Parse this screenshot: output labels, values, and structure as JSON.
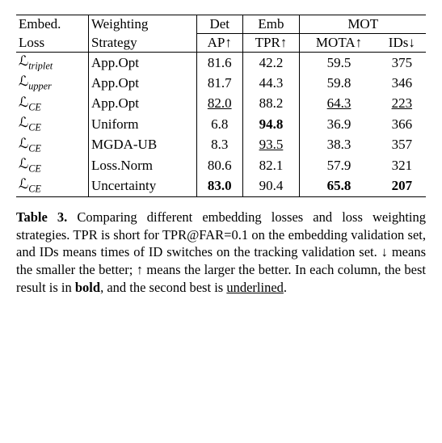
{
  "table": {
    "header": {
      "r1": {
        "embed": "Embed.",
        "weight": "Weighting",
        "det": "Det",
        "emb": "Emb",
        "mot": "MOT"
      },
      "r2": {
        "loss": "Loss",
        "strategy": "Strategy",
        "ap": "AP↑",
        "tpr": "TPR↑",
        "mota": "MOTA↑",
        "ids": "IDs↓"
      }
    },
    "rows": [
      {
        "loss_base": "ℒ",
        "loss_sub": "triplet",
        "strategy": "App.Opt",
        "ap": "81.6",
        "ap_style": "",
        "tpr": "42.2",
        "tpr_style": "",
        "mota": "59.5",
        "mota_style": "",
        "ids": "375",
        "ids_style": ""
      },
      {
        "loss_base": "ℒ",
        "loss_sub": "upper",
        "strategy": "App.Opt",
        "ap": "81.7",
        "ap_style": "",
        "tpr": "44.3",
        "tpr_style": "",
        "mota": "59.8",
        "mota_style": "",
        "ids": "346",
        "ids_style": ""
      },
      {
        "loss_base": "ℒ",
        "loss_sub": "CE",
        "strategy": "App.Opt",
        "ap": "82.0",
        "ap_style": "uline",
        "tpr": "88.2",
        "tpr_style": "",
        "mota": "64.3",
        "mota_style": "uline",
        "ids": "223",
        "ids_style": "uline"
      },
      {
        "loss_base": "ℒ",
        "loss_sub": "CE",
        "strategy": "Uniform",
        "ap": "6.8",
        "ap_style": "",
        "tpr": "94.8",
        "tpr_style": "bold",
        "mota": "36.9",
        "mota_style": "",
        "ids": "366",
        "ids_style": ""
      },
      {
        "loss_base": "ℒ",
        "loss_sub": "CE",
        "strategy": "MGDA-UB",
        "ap": "8.3",
        "ap_style": "",
        "tpr": "93.5",
        "tpr_style": "uline",
        "mota": "38.3",
        "mota_style": "",
        "ids": "357",
        "ids_style": ""
      },
      {
        "loss_base": "ℒ",
        "loss_sub": "CE",
        "strategy": "Loss.Norm",
        "ap": "80.6",
        "ap_style": "",
        "tpr": "82.1",
        "tpr_style": "",
        "mota": "57.9",
        "mota_style": "",
        "ids": "321",
        "ids_style": ""
      },
      {
        "loss_base": "ℒ",
        "loss_sub": "CE",
        "strategy": "Uncertainty",
        "ap": "83.0",
        "ap_style": "bold",
        "tpr": "90.4",
        "tpr_style": "",
        "mota": "65.8",
        "mota_style": "bold",
        "ids": "207",
        "ids_style": "bold"
      }
    ]
  },
  "caption": {
    "lead": "Table 3.",
    "body_pre": " Comparing different embedding losses and loss weighting strategies. TPR is short for TPR@FAR=0.1 on the embedding validation set, and IDs means times of ID switches on the tracking validation set. ↓ means the smaller the better; ↑ means the larger the better. In each column, the best result is in ",
    "bold_word": "bold",
    "body_mid": ", and the second best is ",
    "underlined_word": "underlined",
    "body_end": "."
  },
  "colors": {
    "text": "#000000",
    "rule": "#000000",
    "background": "#ffffff"
  }
}
